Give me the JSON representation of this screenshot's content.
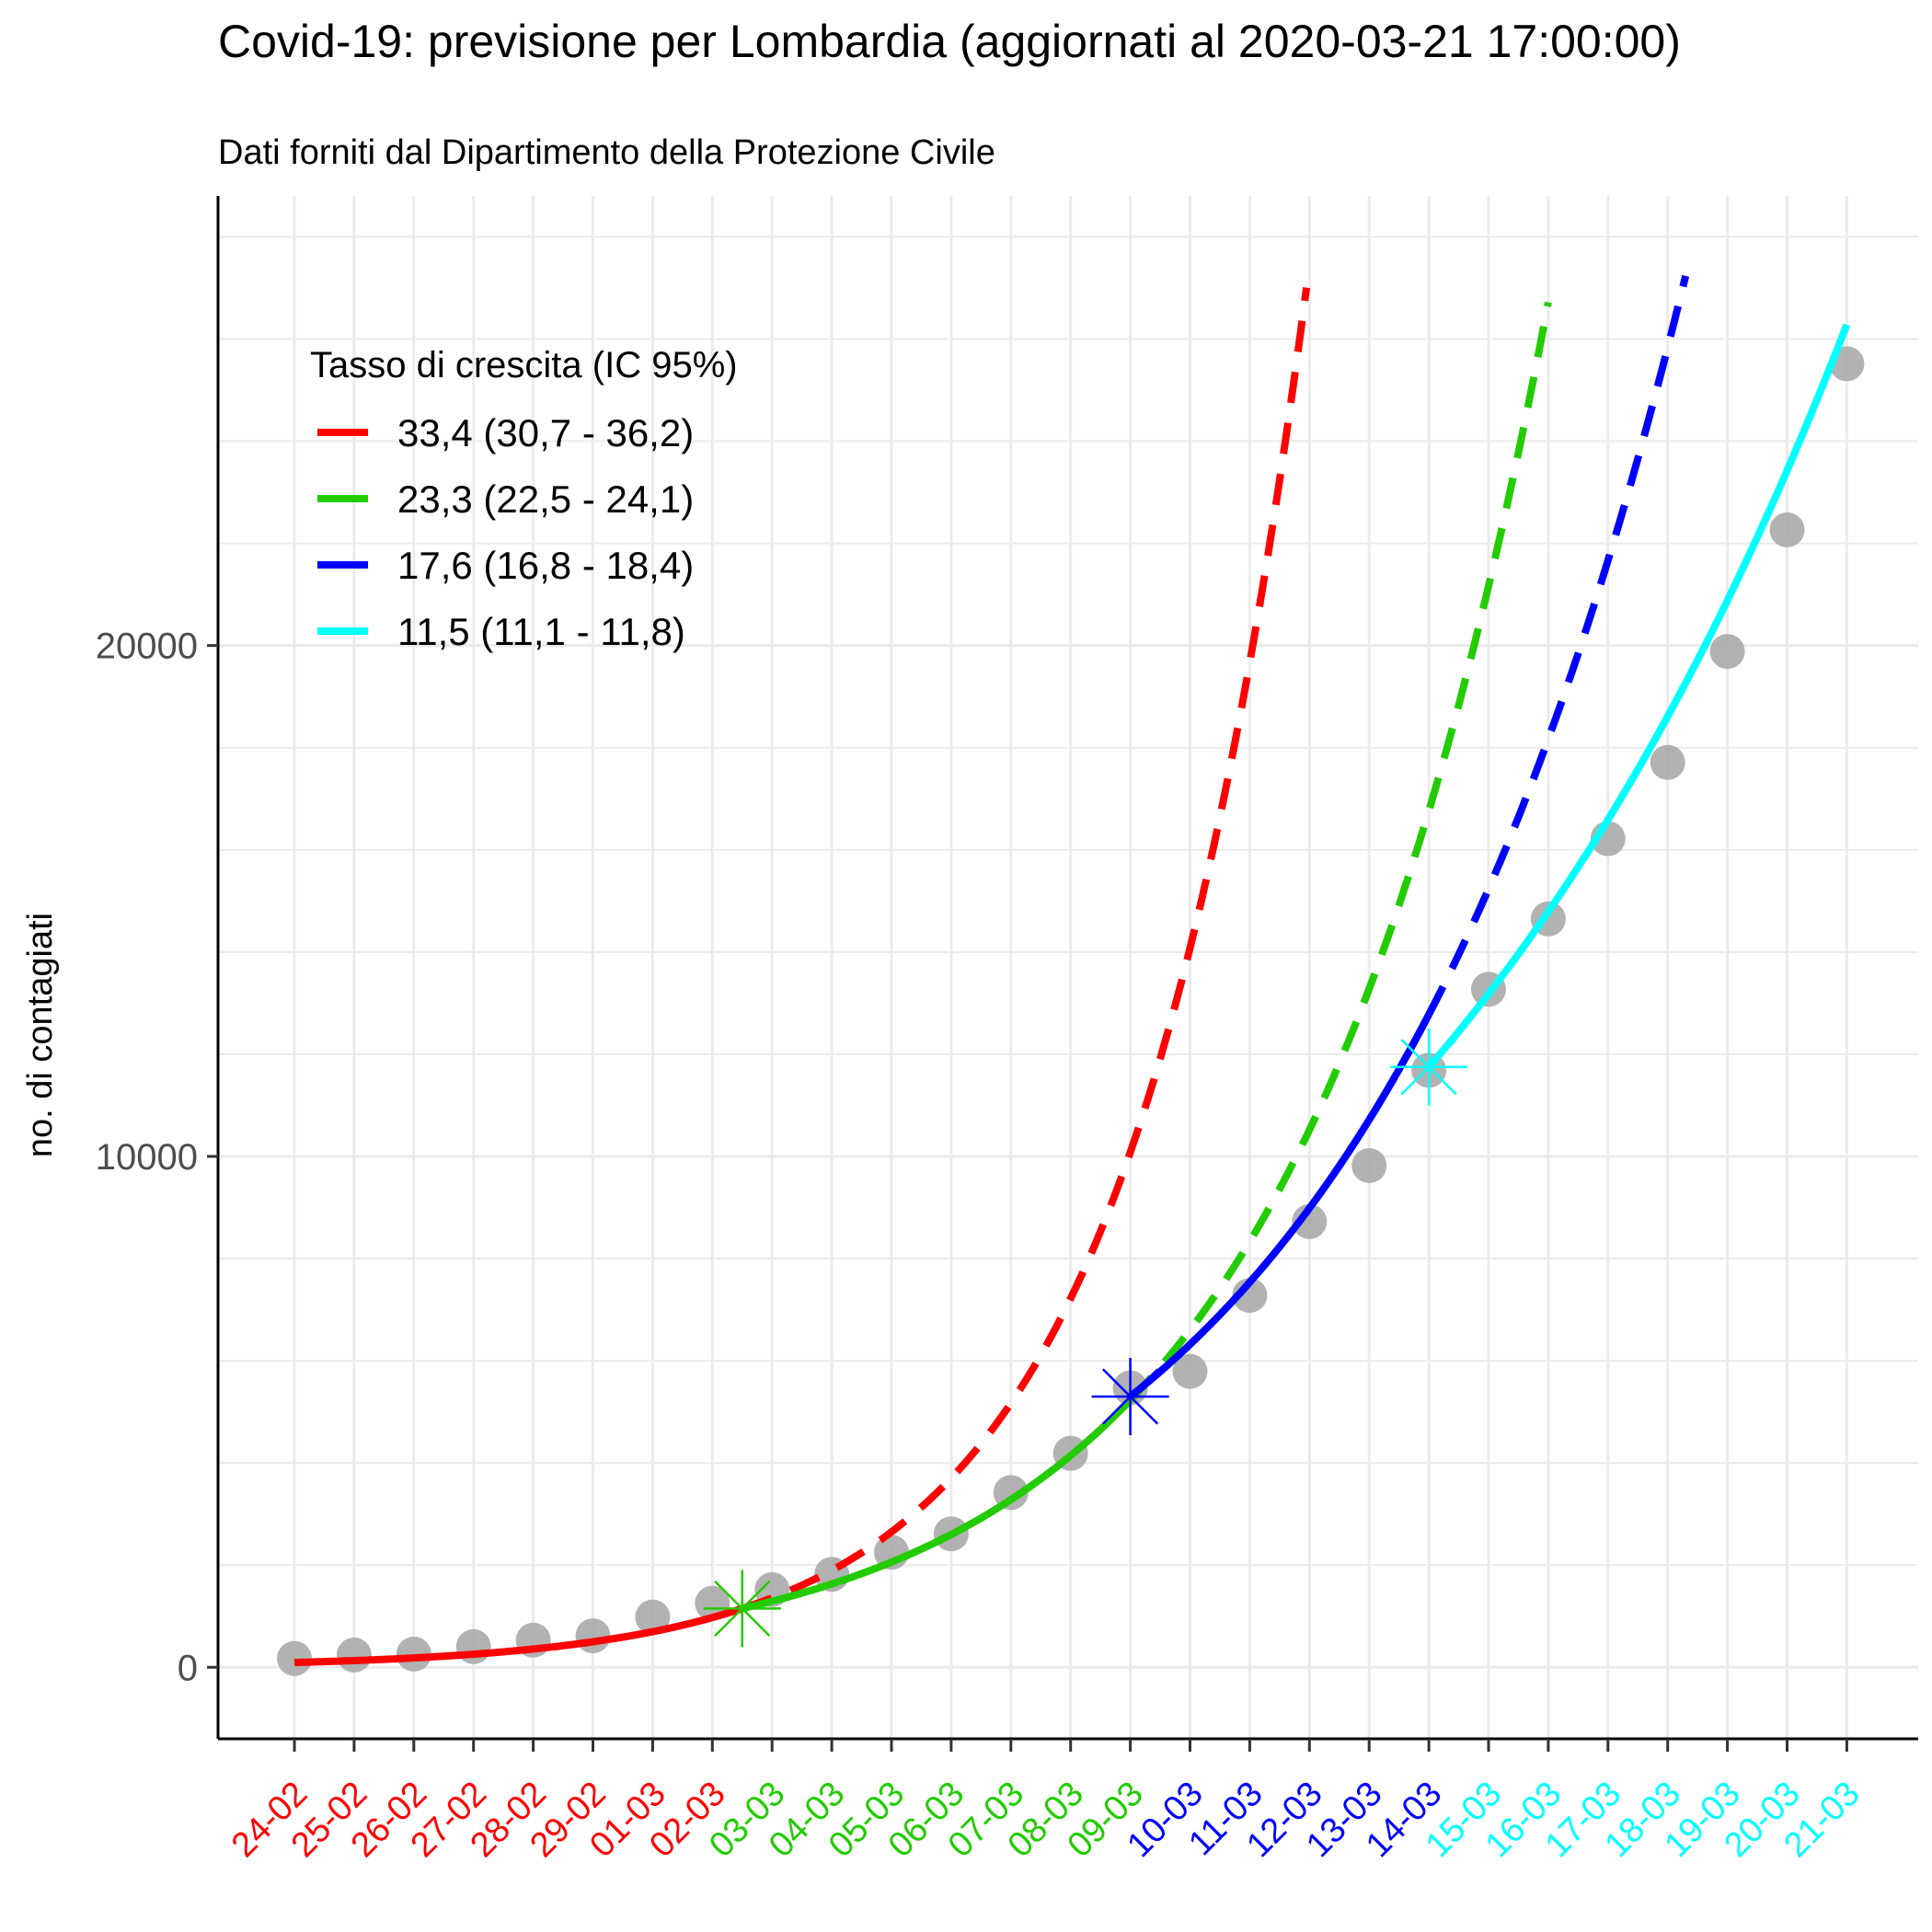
{
  "chart_data": {
    "type": "line",
    "title": "Covid-19: previsione per Lombardia (aggiornati al 2020-03-21 17:00:00)",
    "subtitle": "Dati forniti dal Dipartimento della Protezione Civile",
    "ylabel": "no. di contagiati",
    "xlabel": "",
    "ylim": [
      -1400,
      28800
    ],
    "yticks": [
      0,
      10000,
      20000
    ],
    "grid": true,
    "legend": {
      "title": "Tasso di crescita (IC 95%)",
      "placement": "top-left",
      "entries": [
        {
          "label": "33,4 (30,7 - 36,2)",
          "color": "#ff0000"
        },
        {
          "label": "23,3 (22,5 - 24,1)",
          "color": "#22cc00"
        },
        {
          "label": "17,6 (16,8 - 18,4)",
          "color": "#0000ff"
        },
        {
          "label": "11,5 (11,1 - 11,8)",
          "color": "#00ffff"
        }
      ]
    },
    "categories": [
      "24-02",
      "25-02",
      "26-02",
      "27-02",
      "28-02",
      "29-02",
      "01-03",
      "02-03",
      "03-03",
      "04-03",
      "05-03",
      "06-03",
      "07-03",
      "08-03",
      "09-03",
      "10-03",
      "11-03",
      "12-03",
      "13-03",
      "14-03",
      "15-03",
      "16-03",
      "17-03",
      "18-03",
      "19-03",
      "20-03",
      "21-03"
    ],
    "category_colors": [
      "#ff0000",
      "#ff0000",
      "#ff0000",
      "#ff0000",
      "#ff0000",
      "#ff0000",
      "#ff0000",
      "#ff0000",
      "#22cc00",
      "#22cc00",
      "#22cc00",
      "#22cc00",
      "#22cc00",
      "#22cc00",
      "#22cc00",
      "#0000ff",
      "#0000ff",
      "#0000ff",
      "#0000ff",
      "#0000ff",
      "#00ffff",
      "#00ffff",
      "#00ffff",
      "#00ffff",
      "#00ffff",
      "#00ffff",
      "#00ffff"
    ],
    "observed": {
      "name": "no. di contagiati",
      "color": "#aaaaaa",
      "values": [
        172,
        240,
        258,
        403,
        531,
        615,
        984,
        1254,
        1520,
        1820,
        2251,
        2612,
        3420,
        4189,
        5469,
        5791,
        7280,
        8725,
        9820,
        11685,
        13272,
        14649,
        16220,
        17713,
        19884,
        22264,
        25515
      ]
    },
    "fit_segments": [
      {
        "color": "#ff0000",
        "rate": 0.334,
        "anchor_index": 7.5,
        "anchor_value": 1150,
        "solid_from": 0,
        "solid_to": 7.5,
        "dashed_to": 18.9,
        "cap": 27400
      },
      {
        "color": "#22cc00",
        "rate": 0.233,
        "anchor_index": 7.5,
        "anchor_value": 1150,
        "solid_from": 7.5,
        "solid_to": 14,
        "dashed_to": 22.9,
        "cap": 26900
      },
      {
        "color": "#0000ff",
        "rate": 0.176,
        "anchor_index": 14,
        "anchor_value": 5300,
        "solid_from": 14,
        "solid_to": 19,
        "dashed_to": 24.9,
        "cap": 27400
      },
      {
        "color": "#00ffff",
        "rate": 0.115,
        "anchor_index": 19,
        "anchor_value": 11750,
        "solid_from": 19,
        "solid_to": 26,
        "dashed_to": 26,
        "cap": 30000
      }
    ],
    "breakpoints": [
      {
        "x": 7.5,
        "y": 1150,
        "color": "#22cc00"
      },
      {
        "x": 14,
        "y": 5300,
        "color": "#0000ff"
      },
      {
        "x": 19,
        "y": 11750,
        "color": "#00ffff"
      }
    ]
  }
}
